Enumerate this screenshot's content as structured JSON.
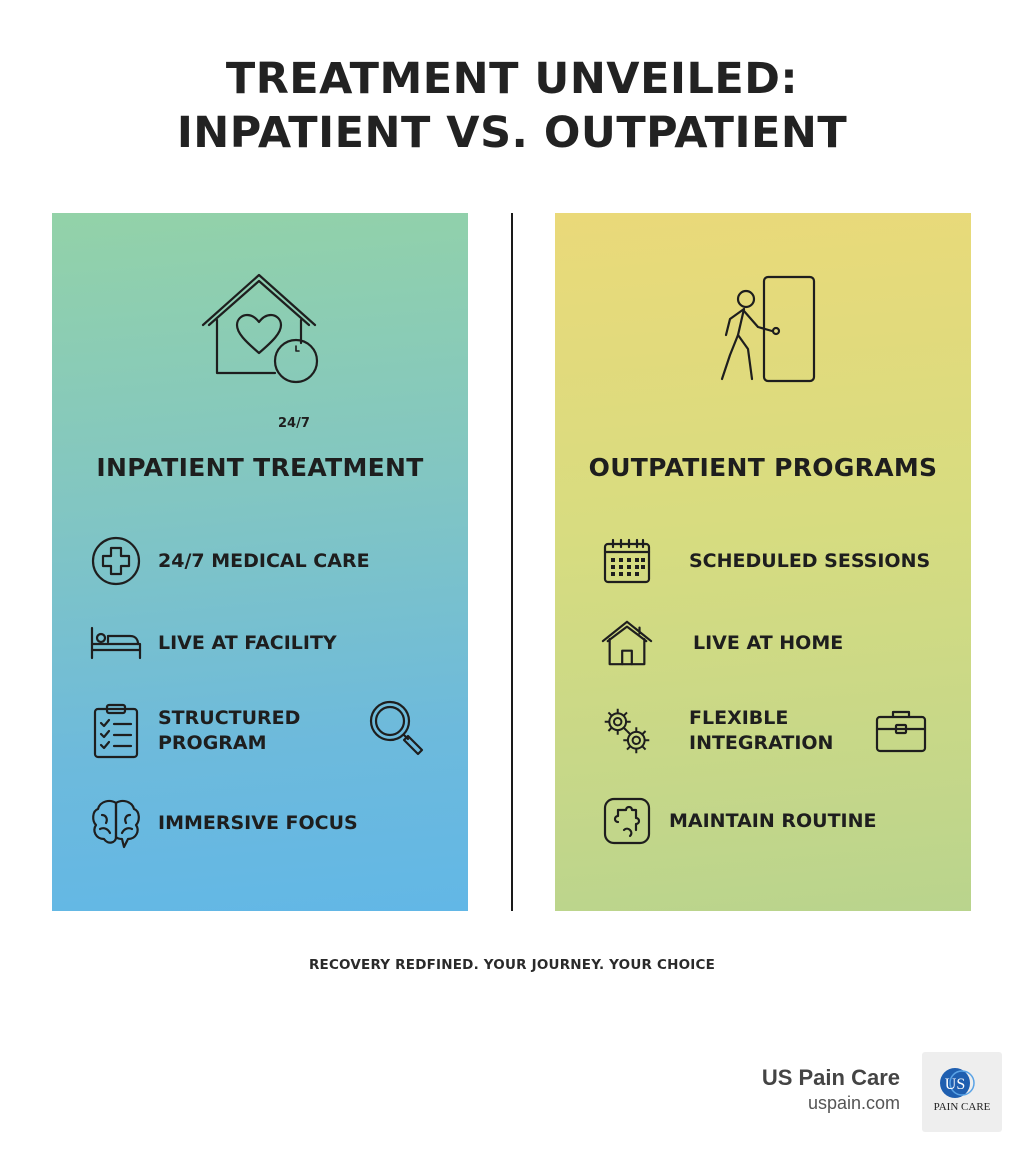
{
  "title": {
    "line1": "TREATMENT UNVEILED:",
    "line2": "INPATIENT VS. OUTPATIENT"
  },
  "inpatient": {
    "hero_icon": "house-heart-24-7-icon",
    "hero_badge": "24/7",
    "heading": "INPATIENT TREATMENT",
    "items": [
      {
        "icon": "medical-cross-icon",
        "label": "24/7 MEDICAL CARE"
      },
      {
        "icon": "bed-icon",
        "label": "LIVE AT FACILITY"
      },
      {
        "icon": "clipboard-checklist-icon",
        "label_line1": "STRUCTURED",
        "label_line2": "PROGRAM"
      },
      {
        "icon": "brain-icon",
        "label": "IMMERSIVE FOCUS"
      }
    ],
    "extra_icon": "magnifying-glass-icon"
  },
  "outpatient": {
    "hero_icon": "person-walking-door-icon",
    "heading": "OUTPATIENT PROGRAMS",
    "items": [
      {
        "icon": "calendar-icon",
        "label": "SCHEDULED SESSIONS"
      },
      {
        "icon": "house-icon",
        "label": "LIVE AT HOME"
      },
      {
        "icon": "gears-icon",
        "label_line1": "FLEXIBLE",
        "label_line2": "INTEGRATION"
      },
      {
        "icon": "puzzle-icon",
        "label": "MAINTAIN ROUTINE"
      }
    ],
    "extra_icon": "briefcase-icon"
  },
  "tagline": "RECOVERY REDFINED. YOUR JOURNEY. YOUR CHOICE",
  "brand": {
    "name": "US Pain Care",
    "url": "uspain.com",
    "logo_monogram": "US",
    "logo_text": "PAIN CARE",
    "logo_color": "#1f5fb0"
  },
  "colors": {
    "inpatient_top": "#93d2a8",
    "inpatient_bottom": "#62b7e6",
    "outpatient_top": "#ead979",
    "outpatient_bottom": "#b9d48d",
    "ink": "#1e1e1e"
  }
}
